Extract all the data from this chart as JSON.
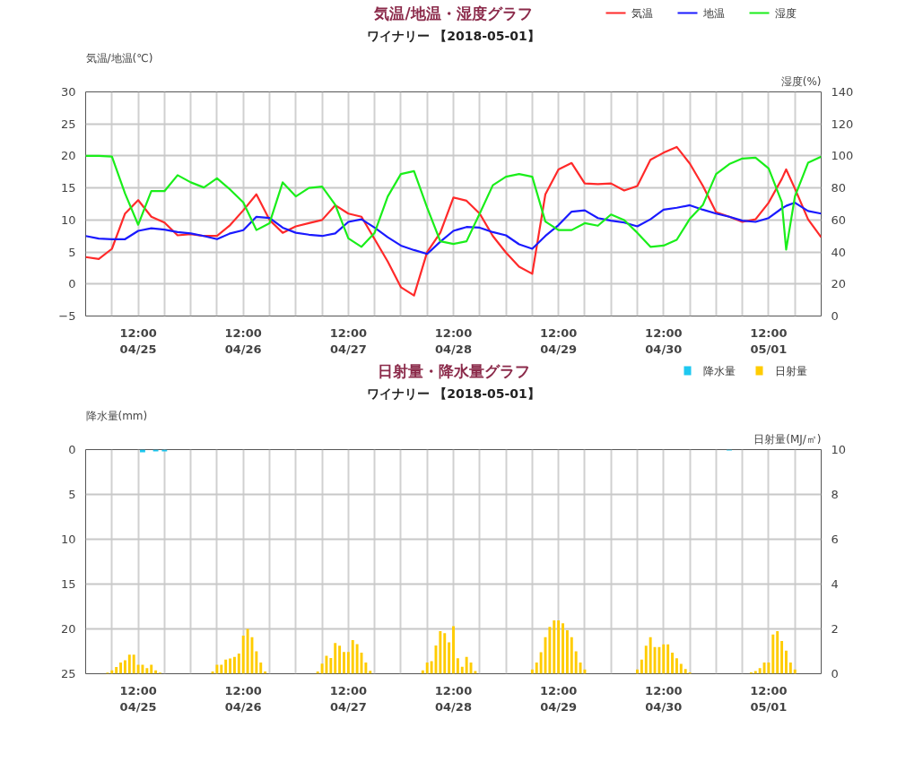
{
  "chart_data": [
    {
      "type": "line",
      "title": "気温/地温・湿度グラフ",
      "subtitle": "ワイナリー 【2018-05-01】",
      "ylabel": "気温/地温(℃)",
      "y2label": "湿度(%)",
      "x": [
        "2018-04-25T00:00",
        "2018-04-25T03:00",
        "2018-04-25T06:00",
        "2018-04-25T09:00",
        "2018-04-25T12:00",
        "2018-04-25T15:00",
        "2018-04-25T18:00",
        "2018-04-25T21:00",
        "2018-04-26T00:00",
        "2018-04-26T03:00",
        "2018-04-26T06:00",
        "2018-04-26T09:00",
        "2018-04-26T12:00",
        "2018-04-26T15:00",
        "2018-04-26T18:00",
        "2018-04-26T21:00",
        "2018-04-27T00:00",
        "2018-04-27T03:00",
        "2018-04-27T06:00",
        "2018-04-27T09:00",
        "2018-04-27T12:00",
        "2018-04-27T15:00",
        "2018-04-27T18:00",
        "2018-04-27T21:00",
        "2018-04-28T00:00",
        "2018-04-28T03:00",
        "2018-04-28T06:00",
        "2018-04-28T09:00",
        "2018-04-28T12:00",
        "2018-04-28T15:00",
        "2018-04-28T18:00",
        "2018-04-28T21:00",
        "2018-04-29T00:00",
        "2018-04-29T03:00",
        "2018-04-29T06:00",
        "2018-04-29T09:00",
        "2018-04-29T12:00",
        "2018-04-29T15:00",
        "2018-04-29T18:00",
        "2018-04-29T21:00",
        "2018-04-30T00:00",
        "2018-04-30T03:00",
        "2018-04-30T06:00",
        "2018-04-30T09:00",
        "2018-04-30T12:00",
        "2018-04-30T15:00",
        "2018-04-30T18:00",
        "2018-04-30T21:00",
        "2018-05-01T00:00",
        "2018-05-01T03:00",
        "2018-05-01T06:00",
        "2018-05-01T09:00",
        "2018-05-01T12:00",
        "2018-05-01T15:00",
        "2018-05-01T16:00",
        "2018-05-01T18:00",
        "2018-05-01T21:00",
        "2018-05-02T00:00"
      ],
      "series": [
        {
          "name": "気温",
          "color": "#ff2a2a",
          "values": [
            4.2,
            3.9,
            5.5,
            11,
            13.1,
            10.5,
            9.6,
            7.6,
            7.8,
            7.5,
            7.5,
            9.2,
            11.5,
            14,
            10,
            8,
            9,
            9.5,
            10,
            12.3,
            11,
            10.5,
            7,
            3.5,
            -0.5,
            -1.8,
            5,
            8,
            13.5,
            13,
            11,
            7.5,
            4.9,
            2.7,
            1.6,
            14,
            17.9,
            18.9,
            15.7,
            15.6,
            15.7,
            14.6,
            15.3,
            19.4,
            20.5,
            21.4,
            18.8,
            15.3,
            11.2,
            10.5,
            9.7,
            10.1,
            12.7,
            16.4,
            17.9,
            14.9,
            10.1,
            7.3
          ]
        },
        {
          "name": "地温",
          "color": "#1a1aff",
          "values": [
            7.5,
            7.1,
            7,
            7,
            8.3,
            8.7,
            8.5,
            8.1,
            7.9,
            7.5,
            7,
            7.9,
            8.4,
            10.5,
            10.3,
            8.8,
            8,
            7.7,
            7.5,
            7.9,
            9.7,
            10.1,
            8.8,
            7.3,
            6,
            5.3,
            4.7,
            6.6,
            8.3,
            8.9,
            8.8,
            8.1,
            7.6,
            6.2,
            5.5,
            7.5,
            9.2,
            11.3,
            11.5,
            10.3,
            9.9,
            9.6,
            9,
            10.1,
            11.6,
            11.9,
            12.3,
            11.6,
            11,
            10.5,
            9.9,
            9.7,
            10.3,
            11.8,
            12.2,
            12.7,
            11.4,
            11
          ]
        },
        {
          "name": "湿度",
          "color": "#1aee1a",
          "axis": "y2",
          "values": [
            100,
            100,
            99.6,
            76.5,
            57,
            78,
            78,
            88,
            83.5,
            80.3,
            86,
            79,
            71,
            53.7,
            58,
            83.5,
            74.7,
            80,
            80.9,
            69.5,
            48.5,
            43.2,
            52,
            74.7,
            88.7,
            90.5,
            67.7,
            46.7,
            45,
            46.7,
            64,
            81.7,
            87,
            88.7,
            87,
            59,
            53.7,
            53.7,
            58,
            56.4,
            63.4,
            59.9,
            52,
            43.2,
            44,
            47.6,
            60.7,
            69.5,
            88.7,
            94.9,
            98.4,
            98.9,
            92.2,
            71.2,
            41.5,
            74.7,
            95.7,
            99.6
          ]
        }
      ],
      "xlim": [
        "2018-04-25T00:00",
        "2018-05-02T00:00"
      ],
      "xticks": [
        {
          "value": "2018-04-25T06:00",
          "label": null
        },
        {
          "value": "2018-04-25T12:00",
          "label": "12:00\n04/25"
        },
        {
          "value": "2018-04-25T18:00",
          "label": null
        },
        {
          "value": "2018-04-26T00:00",
          "label": null
        },
        {
          "value": "2018-04-26T06:00",
          "label": null
        },
        {
          "value": "2018-04-26T12:00",
          "label": "12:00\n04/26"
        },
        {
          "value": "2018-04-26T18:00",
          "label": null
        },
        {
          "value": "2018-04-27T00:00",
          "label": null
        },
        {
          "value": "2018-04-27T06:00",
          "label": null
        },
        {
          "value": "2018-04-27T12:00",
          "label": "12:00\n04/27"
        },
        {
          "value": "2018-04-27T18:00",
          "label": null
        },
        {
          "value": "2018-04-28T00:00",
          "label": null
        },
        {
          "value": "2018-04-28T06:00",
          "label": null
        },
        {
          "value": "2018-04-28T12:00",
          "label": "12:00\n04/28"
        },
        {
          "value": "2018-04-28T18:00",
          "label": null
        },
        {
          "value": "2018-04-29T00:00",
          "label": null
        },
        {
          "value": "2018-04-29T06:00",
          "label": null
        },
        {
          "value": "2018-04-29T12:00",
          "label": "12:00\n04/29"
        },
        {
          "value": "2018-04-29T18:00",
          "label": null
        },
        {
          "value": "2018-04-30T00:00",
          "label": null
        },
        {
          "value": "2018-04-30T06:00",
          "label": null
        },
        {
          "value": "2018-04-30T12:00",
          "label": "12:00\n04/30"
        },
        {
          "value": "2018-04-30T18:00",
          "label": null
        },
        {
          "value": "2018-05-01T00:00",
          "label": null
        },
        {
          "value": "2018-05-01T06:00",
          "label": null
        },
        {
          "value": "2018-05-01T12:00",
          "label": "12:00\n05/01"
        },
        {
          "value": "2018-05-01T18:00",
          "label": null
        }
      ],
      "ylim": [
        -5,
        30
      ],
      "yticks": [
        -5,
        0,
        5,
        10,
        15,
        20,
        25,
        30
      ],
      "y2lim": [
        0,
        140
      ],
      "y2ticks": [
        0,
        20,
        40,
        60,
        80,
        100,
        120,
        140
      ],
      "grid": true,
      "legend": "top right"
    },
    {
      "type": "bar",
      "title": "日射量・降水量グラフ",
      "subtitle": "ワイナリー 【2018-05-01】",
      "ylabel": "降水量(mm)",
      "y2label": "日射量(MJ/㎡)",
      "series": [
        {
          "name": "降水量",
          "color": "#1ec8f0",
          "x": [
            "2018-04-25T13:00",
            "2018-04-25T16:00",
            "2018-04-25T18:00",
            "2018-05-01T03:00"
          ],
          "values": [
            0.3,
            0.2,
            0.2,
            0.1
          ]
        },
        {
          "name": "日射量",
          "color": "#ffcc00",
          "axis": "y2",
          "x": [
            "2018-04-25T05:00",
            "2018-04-25T06:00",
            "2018-04-25T07:00",
            "2018-04-25T08:00",
            "2018-04-25T09:00",
            "2018-04-25T10:00",
            "2018-04-25T11:00",
            "2018-04-25T12:00",
            "2018-04-25T13:00",
            "2018-04-25T14:00",
            "2018-04-25T15:00",
            "2018-04-25T16:00",
            "2018-04-25T17:00",
            "2018-04-26T05:00",
            "2018-04-26T06:00",
            "2018-04-26T07:00",
            "2018-04-26T08:00",
            "2018-04-26T09:00",
            "2018-04-26T10:00",
            "2018-04-26T11:00",
            "2018-04-26T12:00",
            "2018-04-26T13:00",
            "2018-04-26T14:00",
            "2018-04-26T15:00",
            "2018-04-26T16:00",
            "2018-04-26T17:00",
            "2018-04-27T05:00",
            "2018-04-27T06:00",
            "2018-04-27T07:00",
            "2018-04-27T08:00",
            "2018-04-27T09:00",
            "2018-04-27T10:00",
            "2018-04-27T11:00",
            "2018-04-27T12:00",
            "2018-04-27T13:00",
            "2018-04-27T14:00",
            "2018-04-27T15:00",
            "2018-04-27T16:00",
            "2018-04-27T17:00",
            "2018-04-28T05:00",
            "2018-04-28T06:00",
            "2018-04-28T07:00",
            "2018-04-28T08:00",
            "2018-04-28T09:00",
            "2018-04-28T10:00",
            "2018-04-28T11:00",
            "2018-04-28T12:00",
            "2018-04-28T13:00",
            "2018-04-28T14:00",
            "2018-04-28T15:00",
            "2018-04-28T16:00",
            "2018-04-28T17:00",
            "2018-04-29T06:00",
            "2018-04-29T07:00",
            "2018-04-29T08:00",
            "2018-04-29T09:00",
            "2018-04-29T10:00",
            "2018-04-29T11:00",
            "2018-04-29T12:00",
            "2018-04-29T13:00",
            "2018-04-29T14:00",
            "2018-04-29T15:00",
            "2018-04-29T16:00",
            "2018-04-29T17:00",
            "2018-04-29T18:00",
            "2018-04-30T06:00",
            "2018-04-30T07:00",
            "2018-04-30T08:00",
            "2018-04-30T09:00",
            "2018-04-30T10:00",
            "2018-04-30T11:00",
            "2018-04-30T12:00",
            "2018-04-30T13:00",
            "2018-04-30T14:00",
            "2018-04-30T15:00",
            "2018-04-30T16:00",
            "2018-04-30T17:00",
            "2018-04-30T18:00",
            "2018-05-01T08:00",
            "2018-05-01T09:00",
            "2018-05-01T10:00",
            "2018-05-01T11:00",
            "2018-05-01T12:00",
            "2018-05-01T13:00",
            "2018-05-01T14:00",
            "2018-05-01T15:00",
            "2018-05-01T16:00",
            "2018-05-01T17:00",
            "2018-05-01T18:00"
          ],
          "values": [
            0.05,
            0.15,
            0.3,
            0.5,
            0.6,
            0.85,
            0.85,
            0.4,
            0.4,
            0.25,
            0.4,
            0.15,
            0.05,
            0.1,
            0.4,
            0.4,
            0.63,
            0.68,
            0.75,
            0.9,
            1.7,
            2.0,
            1.63,
            1.0,
            0.5,
            0.1,
            0.1,
            0.45,
            0.8,
            0.7,
            1.37,
            1.25,
            0.97,
            0.97,
            1.5,
            1.32,
            0.94,
            0.5,
            0.13,
            0.15,
            0.5,
            0.56,
            1.26,
            1.9,
            1.81,
            1.4,
            2.12,
            0.69,
            0.31,
            0.75,
            0.5,
            0.12,
            0.19,
            0.5,
            0.96,
            1.63,
            2.09,
            2.38,
            2.38,
            2.25,
            1.94,
            1.63,
            1.0,
            0.5,
            0.19,
            0.19,
            0.63,
            1.25,
            1.63,
            1.19,
            1.19,
            1.31,
            1.31,
            0.94,
            0.69,
            0.44,
            0.21,
            0.06,
            0.06,
            0.12,
            0.25,
            0.5,
            0.5,
            1.75,
            1.9,
            1.46,
            1.03,
            0.5,
            0.19
          ]
        }
      ],
      "xlim": [
        "2018-04-25T00:00",
        "2018-05-02T00:00"
      ],
      "xticks": [
        {
          "value": "2018-04-25T06:00",
          "label": null
        },
        {
          "value": "2018-04-25T12:00",
          "label": "12:00\n04/25"
        },
        {
          "value": "2018-04-25T18:00",
          "label": null
        },
        {
          "value": "2018-04-26T00:00",
          "label": null
        },
        {
          "value": "2018-04-26T06:00",
          "label": null
        },
        {
          "value": "2018-04-26T12:00",
          "label": "12:00\n04/26"
        },
        {
          "value": "2018-04-26T18:00",
          "label": null
        },
        {
          "value": "2018-04-27T00:00",
          "label": null
        },
        {
          "value": "2018-04-27T06:00",
          "label": null
        },
        {
          "value": "2018-04-27T12:00",
          "label": "12:00\n04/27"
        },
        {
          "value": "2018-04-27T18:00",
          "label": null
        },
        {
          "value": "2018-04-28T00:00",
          "label": null
        },
        {
          "value": "2018-04-28T06:00",
          "label": null
        },
        {
          "value": "2018-04-28T12:00",
          "label": "12:00\n04/28"
        },
        {
          "value": "2018-04-28T18:00",
          "label": null
        },
        {
          "value": "2018-04-29T00:00",
          "label": null
        },
        {
          "value": "2018-04-29T06:00",
          "label": null
        },
        {
          "value": "2018-04-29T12:00",
          "label": "12:00\n04/29"
        },
        {
          "value": "2018-04-29T18:00",
          "label": null
        },
        {
          "value": "2018-04-30T00:00",
          "label": null
        },
        {
          "value": "2018-04-30T06:00",
          "label": null
        },
        {
          "value": "2018-04-30T12:00",
          "label": "12:00\n04/30"
        },
        {
          "value": "2018-04-30T18:00",
          "label": null
        },
        {
          "value": "2018-05-01T00:00",
          "label": null
        },
        {
          "value": "2018-05-01T06:00",
          "label": null
        },
        {
          "value": "2018-05-01T12:00",
          "label": "12:00\n05/01"
        },
        {
          "value": "2018-05-01T18:00",
          "label": null
        }
      ],
      "ylim": [
        25,
        0
      ],
      "yticks": [
        0,
        5,
        10,
        15,
        20,
        25
      ],
      "y2lim": [
        0,
        10
      ],
      "y2ticks": [
        0,
        2,
        4,
        6,
        8,
        10
      ],
      "grid": true,
      "legend": "top right"
    }
  ]
}
